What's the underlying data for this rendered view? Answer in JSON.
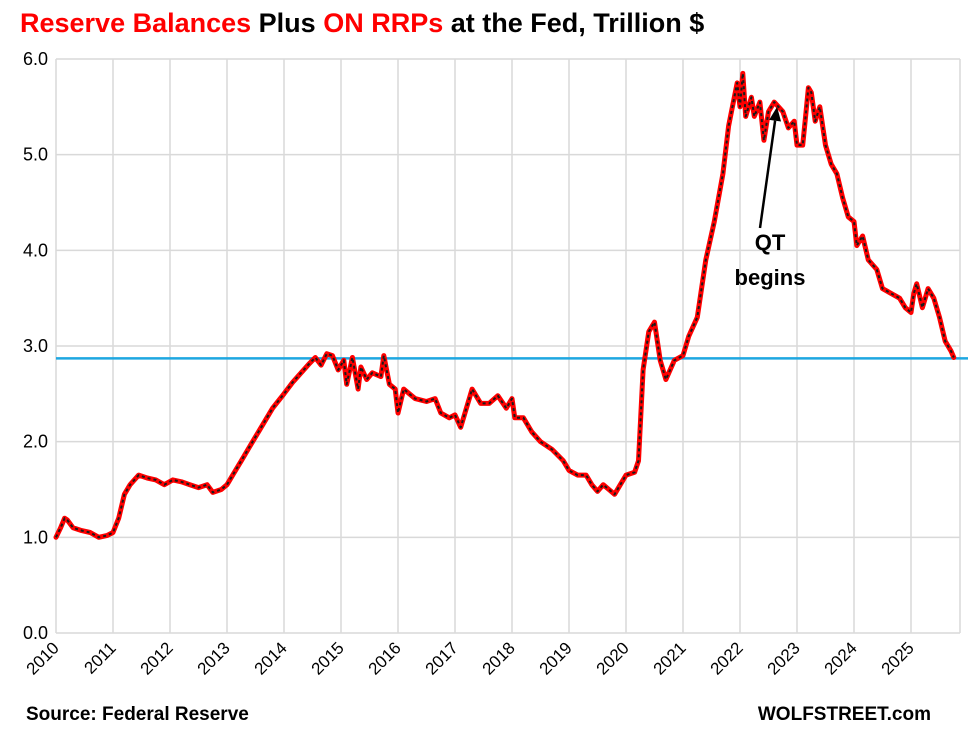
{
  "title": {
    "part1": "Reserve Balances",
    "part2": " Plus ",
    "part3": "ON RRPs",
    "part4": " at the Fed, Trillion $"
  },
  "footer": {
    "source": "Source: Federal Reserve",
    "brand": "WOLFSTREET.com"
  },
  "colors": {
    "series_line": "#ff0000",
    "series_dash": "#1a1a1a",
    "reference_line": "#1ea7e1",
    "grid": "#d9d9d9"
  },
  "chart_data": {
    "type": "line",
    "title": "Reserve Balances Plus ON RRPs at the Fed, Trillion $",
    "xlabel": "",
    "ylabel": "",
    "xlim": [
      2010,
      2025.8
    ],
    "ylim": [
      0,
      6
    ],
    "y_ticks": [
      "0.0",
      "1.0",
      "2.0",
      "3.0",
      "4.0",
      "5.0",
      "6.0"
    ],
    "x_ticks": [
      "2010",
      "2011",
      "2012",
      "2013",
      "2014",
      "2015",
      "2016",
      "2017",
      "2018",
      "2019",
      "2020",
      "2021",
      "2022",
      "2023",
      "2024",
      "2025"
    ],
    "grid": true,
    "series": [
      {
        "name": "Reserve Balances Plus ON RRPs",
        "points": [
          [
            2010.0,
            1.0
          ],
          [
            2010.08,
            1.1
          ],
          [
            2010.15,
            1.2
          ],
          [
            2010.2,
            1.18
          ],
          [
            2010.3,
            1.1
          ],
          [
            2010.45,
            1.07
          ],
          [
            2010.6,
            1.05
          ],
          [
            2010.75,
            1.0
          ],
          [
            2010.9,
            1.02
          ],
          [
            2011.0,
            1.05
          ],
          [
            2011.1,
            1.2
          ],
          [
            2011.2,
            1.45
          ],
          [
            2011.3,
            1.55
          ],
          [
            2011.45,
            1.65
          ],
          [
            2011.6,
            1.62
          ],
          [
            2011.75,
            1.6
          ],
          [
            2011.9,
            1.55
          ],
          [
            2012.05,
            1.6
          ],
          [
            2012.2,
            1.58
          ],
          [
            2012.35,
            1.55
          ],
          [
            2012.5,
            1.52
          ],
          [
            2012.65,
            1.55
          ],
          [
            2012.75,
            1.47
          ],
          [
            2012.9,
            1.5
          ],
          [
            2013.0,
            1.55
          ],
          [
            2013.1,
            1.65
          ],
          [
            2013.25,
            1.8
          ],
          [
            2013.4,
            1.95
          ],
          [
            2013.6,
            2.15
          ],
          [
            2013.8,
            2.35
          ],
          [
            2014.0,
            2.5
          ],
          [
            2014.15,
            2.62
          ],
          [
            2014.3,
            2.72
          ],
          [
            2014.45,
            2.82
          ],
          [
            2014.55,
            2.88
          ],
          [
            2014.65,
            2.8
          ],
          [
            2014.75,
            2.92
          ],
          [
            2014.85,
            2.9
          ],
          [
            2014.95,
            2.75
          ],
          [
            2015.05,
            2.85
          ],
          [
            2015.1,
            2.6
          ],
          [
            2015.2,
            2.88
          ],
          [
            2015.3,
            2.55
          ],
          [
            2015.35,
            2.78
          ],
          [
            2015.45,
            2.65
          ],
          [
            2015.55,
            2.72
          ],
          [
            2015.7,
            2.68
          ],
          [
            2015.75,
            2.9
          ],
          [
            2015.85,
            2.6
          ],
          [
            2015.95,
            2.55
          ],
          [
            2016.0,
            2.3
          ],
          [
            2016.1,
            2.55
          ],
          [
            2016.3,
            2.45
          ],
          [
            2016.5,
            2.42
          ],
          [
            2016.65,
            2.45
          ],
          [
            2016.75,
            2.3
          ],
          [
            2016.9,
            2.25
          ],
          [
            2017.0,
            2.28
          ],
          [
            2017.1,
            2.15
          ],
          [
            2017.2,
            2.35
          ],
          [
            2017.3,
            2.55
          ],
          [
            2017.45,
            2.4
          ],
          [
            2017.6,
            2.4
          ],
          [
            2017.75,
            2.48
          ],
          [
            2017.9,
            2.35
          ],
          [
            2018.0,
            2.45
          ],
          [
            2018.05,
            2.25
          ],
          [
            2018.2,
            2.25
          ],
          [
            2018.35,
            2.1
          ],
          [
            2018.5,
            2.0
          ],
          [
            2018.7,
            1.92
          ],
          [
            2018.9,
            1.8
          ],
          [
            2019.0,
            1.7
          ],
          [
            2019.15,
            1.65
          ],
          [
            2019.3,
            1.65
          ],
          [
            2019.4,
            1.55
          ],
          [
            2019.5,
            1.48
          ],
          [
            2019.6,
            1.55
          ],
          [
            2019.7,
            1.5
          ],
          [
            2019.8,
            1.45
          ],
          [
            2019.9,
            1.55
          ],
          [
            2020.0,
            1.65
          ],
          [
            2020.15,
            1.68
          ],
          [
            2020.22,
            1.8
          ],
          [
            2020.3,
            2.75
          ],
          [
            2020.4,
            3.15
          ],
          [
            2020.5,
            3.25
          ],
          [
            2020.6,
            2.85
          ],
          [
            2020.7,
            2.65
          ],
          [
            2020.85,
            2.85
          ],
          [
            2021.0,
            2.9
          ],
          [
            2021.1,
            3.1
          ],
          [
            2021.25,
            3.3
          ],
          [
            2021.4,
            3.9
          ],
          [
            2021.55,
            4.3
          ],
          [
            2021.7,
            4.8
          ],
          [
            2021.8,
            5.3
          ],
          [
            2021.9,
            5.6
          ],
          [
            2021.95,
            5.75
          ],
          [
            2022.0,
            5.5
          ],
          [
            2022.05,
            5.85
          ],
          [
            2022.1,
            5.4
          ],
          [
            2022.2,
            5.6
          ],
          [
            2022.25,
            5.4
          ],
          [
            2022.35,
            5.55
          ],
          [
            2022.42,
            5.15
          ],
          [
            2022.5,
            5.45
          ],
          [
            2022.6,
            5.55
          ],
          [
            2022.75,
            5.45
          ],
          [
            2022.85,
            5.28
          ],
          [
            2022.95,
            5.35
          ],
          [
            2023.0,
            5.1
          ],
          [
            2023.1,
            5.1
          ],
          [
            2023.15,
            5.4
          ],
          [
            2023.2,
            5.7
          ],
          [
            2023.25,
            5.65
          ],
          [
            2023.32,
            5.35
          ],
          [
            2023.4,
            5.5
          ],
          [
            2023.5,
            5.1
          ],
          [
            2023.6,
            4.9
          ],
          [
            2023.7,
            4.8
          ],
          [
            2023.8,
            4.55
          ],
          [
            2023.9,
            4.35
          ],
          [
            2024.0,
            4.3
          ],
          [
            2024.05,
            4.05
          ],
          [
            2024.15,
            4.15
          ],
          [
            2024.25,
            3.9
          ],
          [
            2024.4,
            3.8
          ],
          [
            2024.5,
            3.6
          ],
          [
            2024.65,
            3.55
          ],
          [
            2024.8,
            3.5
          ],
          [
            2024.9,
            3.4
          ],
          [
            2025.0,
            3.35
          ],
          [
            2025.05,
            3.55
          ],
          [
            2025.1,
            3.65
          ],
          [
            2025.2,
            3.4
          ],
          [
            2025.3,
            3.6
          ],
          [
            2025.4,
            3.5
          ],
          [
            2025.5,
            3.3
          ],
          [
            2025.6,
            3.05
          ],
          [
            2025.7,
            2.95
          ],
          [
            2025.75,
            2.88
          ]
        ]
      }
    ],
    "reference_lines": [
      {
        "axis": "y",
        "value": 2.87
      }
    ],
    "annotations": [
      {
        "line1": "QT",
        "line2": "begins",
        "arrow_to": [
          2022.65,
          5.5
        ]
      }
    ]
  }
}
